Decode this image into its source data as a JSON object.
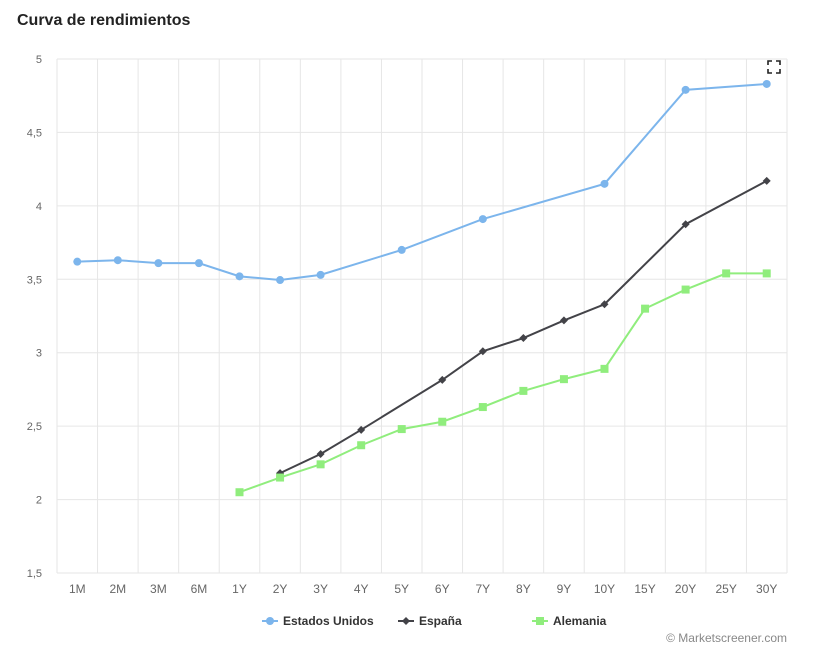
{
  "chart_data": {
    "type": "line",
    "title": "Curva de rendimientos",
    "categories": [
      "1M",
      "2M",
      "3M",
      "6M",
      "1Y",
      "2Y",
      "3Y",
      "4Y",
      "5Y",
      "6Y",
      "7Y",
      "8Y",
      "9Y",
      "10Y",
      "15Y",
      "20Y",
      "25Y",
      "30Y"
    ],
    "ylim": [
      1.5,
      5
    ],
    "yticks": [
      "1,5",
      "2",
      "2,5",
      "3",
      "3,5",
      "4",
      "4,5",
      "5"
    ],
    "ytick_values": [
      1.5,
      2,
      2.5,
      3,
      3.5,
      4,
      4.5,
      5
    ],
    "grid": true,
    "legend": "bottom-center",
    "series": [
      {
        "name": "Estados Unidos",
        "color": "#7cb5ec",
        "marker": "circle",
        "values": [
          3.62,
          3.63,
          3.61,
          3.61,
          3.52,
          3.495,
          3.53,
          null,
          3.7,
          null,
          3.91,
          null,
          null,
          4.15,
          null,
          4.79,
          null,
          4.83
        ]
      },
      {
        "name": "España",
        "color": "#434348",
        "marker": "diamond",
        "values": [
          null,
          null,
          null,
          null,
          null,
          2.18,
          2.31,
          2.475,
          null,
          2.815,
          3.01,
          3.1,
          3.22,
          3.33,
          null,
          3.875,
          null,
          4.17
        ]
      },
      {
        "name": "Alemania",
        "color": "#90ed7d",
        "marker": "square",
        "values": [
          null,
          null,
          null,
          null,
          2.05,
          2.15,
          2.24,
          2.37,
          2.48,
          2.53,
          2.63,
          2.74,
          2.82,
          2.89,
          3.3,
          3.43,
          3.54,
          3.54
        ]
      }
    ]
  },
  "credit": "© Marketscreener.com"
}
